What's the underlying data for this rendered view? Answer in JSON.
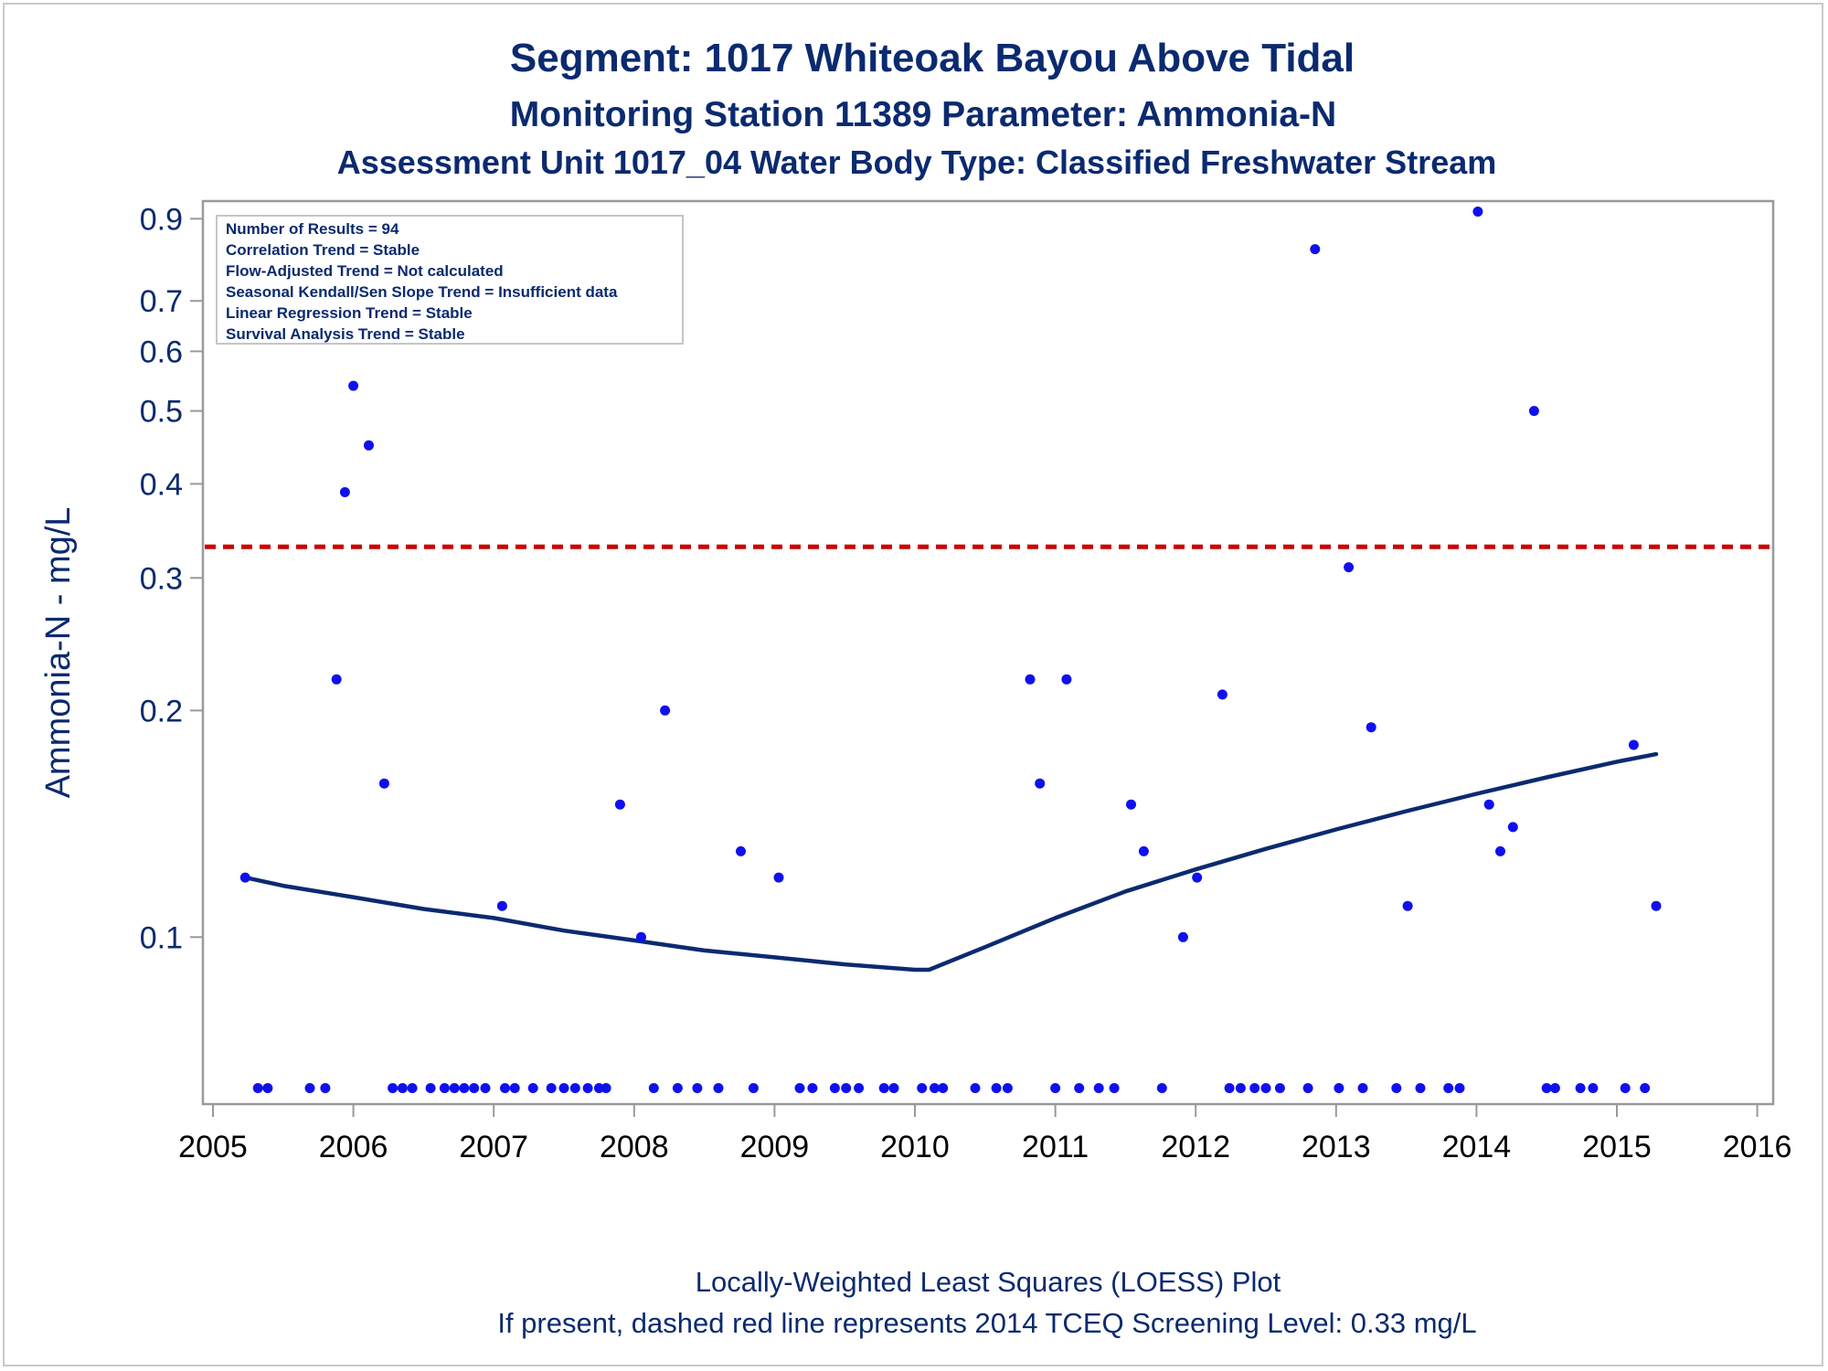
{
  "titles": {
    "line1": "Segment: 1017  Whiteoak Bayou Above Tidal",
    "line2": "Monitoring Station 11389 Parameter: Ammonia-N",
    "line3": "Assessment Unit 1017_04   Water Body Type: Classified Freshwater Stream"
  },
  "info_box": [
    "Number of Results = 94",
    "Correlation Trend = Stable",
    "Flow-Adjusted Trend = Not calculated",
    "Seasonal Kendall/Sen Slope Trend = Insufficient data",
    "Linear Regression Trend = Stable",
    "Survival Analysis Trend = Stable"
  ],
  "footnotes": {
    "line1": "Locally-Weighted Least Squares (LOESS) Plot",
    "line2": "If present, dashed red line represents 2014 TCEQ Screening Level: 0.33 mg/L"
  },
  "colors": {
    "points": "#1010ee",
    "loess": "#0b2a6f",
    "screening": "#cc0000",
    "text": "#0b2a6f",
    "axis": "#999999"
  },
  "chart_data": {
    "type": "scatter",
    "ylabel": "Ammonia-N - mg/L",
    "xlabel": "",
    "y_scale": "log",
    "xlim": [
      2005,
      2016
    ],
    "ylim": [
      0.06,
      0.95
    ],
    "x_ticks": [
      2005,
      2006,
      2007,
      2008,
      2009,
      2010,
      2011,
      2012,
      2013,
      2014,
      2015,
      2016
    ],
    "y_ticks": [
      0.1,
      0.2,
      0.3,
      0.4,
      0.5,
      0.6,
      0.7,
      0.9
    ],
    "y_tick_labels": [
      "0.1",
      "0.2",
      "0.3",
      "0.4",
      "0.5",
      "0.6",
      "0.7",
      "0.9"
    ],
    "screening_level": 0.33,
    "non_detect_value": 0.063,
    "points": [
      [
        2005.23,
        0.12
      ],
      [
        2005.88,
        0.22
      ],
      [
        2005.94,
        0.39
      ],
      [
        2006.0,
        0.54
      ],
      [
        2006.11,
        0.45
      ],
      [
        2006.22,
        0.16
      ],
      [
        2007.06,
        0.11
      ],
      [
        2007.9,
        0.15
      ],
      [
        2008.05,
        0.1
      ],
      [
        2008.22,
        0.2
      ],
      [
        2008.76,
        0.13
      ],
      [
        2009.03,
        0.12
      ],
      [
        2010.82,
        0.22
      ],
      [
        2010.89,
        0.16
      ],
      [
        2011.08,
        0.22
      ],
      [
        2011.54,
        0.15
      ],
      [
        2011.63,
        0.13
      ],
      [
        2011.91,
        0.1
      ],
      [
        2012.01,
        0.12
      ],
      [
        2012.19,
        0.21
      ],
      [
        2012.85,
        0.82
      ],
      [
        2013.09,
        0.31
      ],
      [
        2013.25,
        0.19
      ],
      [
        2013.51,
        0.11
      ],
      [
        2014.01,
        0.92
      ],
      [
        2014.09,
        0.15
      ],
      [
        2014.17,
        0.13
      ],
      [
        2014.26,
        0.14
      ],
      [
        2014.41,
        0.5
      ],
      [
        2015.12,
        0.18
      ],
      [
        2015.28,
        0.11
      ],
      [
        2005.32,
        0.063
      ],
      [
        2005.39,
        0.063
      ],
      [
        2005.69,
        0.063
      ],
      [
        2005.8,
        0.063
      ],
      [
        2006.28,
        0.063
      ],
      [
        2006.35,
        0.063
      ],
      [
        2006.42,
        0.063
      ],
      [
        2006.55,
        0.063
      ],
      [
        2006.65,
        0.063
      ],
      [
        2006.72,
        0.063
      ],
      [
        2006.79,
        0.063
      ],
      [
        2006.86,
        0.063
      ],
      [
        2006.94,
        0.063
      ],
      [
        2007.08,
        0.063
      ],
      [
        2007.15,
        0.063
      ],
      [
        2007.28,
        0.063
      ],
      [
        2007.41,
        0.063
      ],
      [
        2007.5,
        0.063
      ],
      [
        2007.58,
        0.063
      ],
      [
        2007.67,
        0.063
      ],
      [
        2007.75,
        0.063
      ],
      [
        2007.8,
        0.063
      ],
      [
        2008.14,
        0.063
      ],
      [
        2008.31,
        0.063
      ],
      [
        2008.45,
        0.063
      ],
      [
        2008.6,
        0.063
      ],
      [
        2008.85,
        0.063
      ],
      [
        2009.18,
        0.063
      ],
      [
        2009.27,
        0.063
      ],
      [
        2009.43,
        0.063
      ],
      [
        2009.51,
        0.063
      ],
      [
        2009.6,
        0.063
      ],
      [
        2009.78,
        0.063
      ],
      [
        2009.85,
        0.063
      ],
      [
        2010.05,
        0.063
      ],
      [
        2010.14,
        0.063
      ],
      [
        2010.2,
        0.063
      ],
      [
        2010.43,
        0.063
      ],
      [
        2010.58,
        0.063
      ],
      [
        2010.66,
        0.063
      ],
      [
        2011.0,
        0.063
      ],
      [
        2011.17,
        0.063
      ],
      [
        2011.31,
        0.063
      ],
      [
        2011.42,
        0.063
      ],
      [
        2011.76,
        0.063
      ],
      [
        2012.24,
        0.063
      ],
      [
        2012.32,
        0.063
      ],
      [
        2012.42,
        0.063
      ],
      [
        2012.5,
        0.063
      ],
      [
        2012.6,
        0.063
      ],
      [
        2012.8,
        0.063
      ],
      [
        2013.02,
        0.063
      ],
      [
        2013.19,
        0.063
      ],
      [
        2013.43,
        0.063
      ],
      [
        2013.6,
        0.063
      ],
      [
        2013.8,
        0.063
      ],
      [
        2013.88,
        0.063
      ],
      [
        2014.5,
        0.063
      ],
      [
        2014.56,
        0.063
      ],
      [
        2014.74,
        0.063
      ],
      [
        2014.83,
        0.063
      ],
      [
        2015.06,
        0.063
      ],
      [
        2015.2,
        0.063
      ]
    ],
    "loess": [
      [
        2005.23,
        0.12
      ],
      [
        2005.5,
        0.117
      ],
      [
        2006.0,
        0.113
      ],
      [
        2006.5,
        0.109
      ],
      [
        2007.0,
        0.106
      ],
      [
        2007.5,
        0.102
      ],
      [
        2008.0,
        0.099
      ],
      [
        2008.5,
        0.096
      ],
      [
        2009.0,
        0.094
      ],
      [
        2009.5,
        0.092
      ],
      [
        2010.0,
        0.0905
      ],
      [
        2010.1,
        0.0905
      ],
      [
        2010.5,
        0.097
      ],
      [
        2011.0,
        0.106
      ],
      [
        2011.5,
        0.115
      ],
      [
        2012.0,
        0.123
      ],
      [
        2012.5,
        0.131
      ],
      [
        2013.0,
        0.139
      ],
      [
        2013.5,
        0.147
      ],
      [
        2014.0,
        0.155
      ],
      [
        2014.5,
        0.163
      ],
      [
        2015.0,
        0.171
      ],
      [
        2015.28,
        0.175
      ]
    ]
  }
}
